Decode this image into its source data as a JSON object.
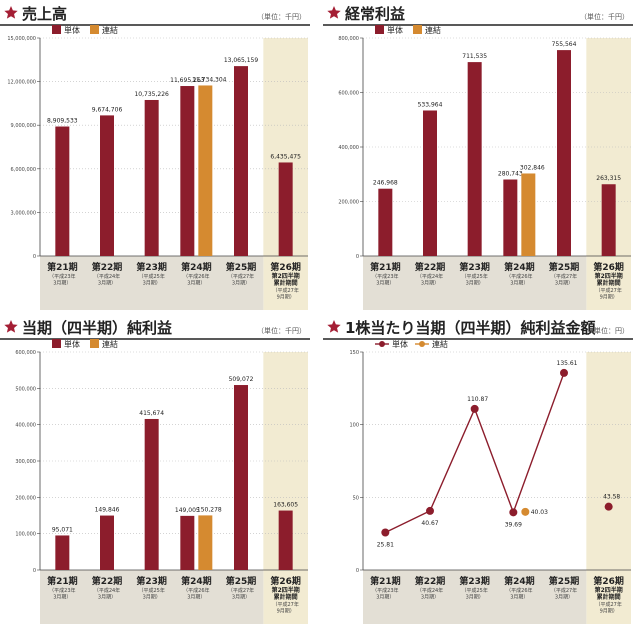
{
  "page": {
    "colors": {
      "tandoku": "#8c1d2c",
      "renketsu": "#d58a30",
      "highlight": "#f2ebd2",
      "labelbg": "#e3dfd5",
      "grid": "#bbbbbb",
      "star": "#a41e34"
    }
  },
  "chart_data": [
    {
      "type": "bar",
      "title": "売上高",
      "unit": "（単位：千円）",
      "legend": [
        "単体",
        "連結"
      ],
      "ylim": [
        0,
        15000000
      ],
      "ytick_labels": [
        "0",
        "3,000,000",
        "6,000,000",
        "9,000,000",
        "12,000,000",
        "15,000,000"
      ],
      "categories": [
        {
          "period": "第21期",
          "sub": [
            "（平成23年",
            "3月期）"
          ]
        },
        {
          "period": "第22期",
          "sub": [
            "（平成24年",
            "3月期）"
          ]
        },
        {
          "period": "第23期",
          "sub": [
            "（平成25年",
            "3月期）"
          ]
        },
        {
          "period": "第24期",
          "sub": [
            "（平成26年",
            "3月期）"
          ]
        },
        {
          "period": "第25期",
          "sub": [
            "（平成27年",
            "3月期）"
          ]
        },
        {
          "period": "第26期",
          "bold": [
            "第2四半期",
            "累計期間"
          ],
          "sub": [
            "（平成27年",
            "9月期）"
          ]
        }
      ],
      "series": [
        {
          "name": "単体",
          "values": [
            8909533,
            9674706,
            10735226,
            11695263,
            13065159,
            6435475
          ],
          "labels": [
            "8,909,533",
            "9,674,706",
            "10,735,226",
            "11,695,263",
            "13,065,159",
            "6,435,475"
          ]
        },
        {
          "name": "連結",
          "values": [
            null,
            null,
            null,
            11734304,
            null,
            null
          ],
          "labels": [
            null,
            null,
            null,
            "11,734,304",
            null,
            null
          ]
        }
      ]
    },
    {
      "type": "bar",
      "title": "経常利益",
      "unit": "（単位：千円）",
      "legend": [
        "単体",
        "連結"
      ],
      "ylim": [
        0,
        800000
      ],
      "ytick_labels": [
        "0",
        "200,000",
        "400,000",
        "600,000",
        "800,000"
      ],
      "categories": [
        {
          "period": "第21期",
          "sub": [
            "（平成23年",
            "3月期）"
          ]
        },
        {
          "period": "第22期",
          "sub": [
            "（平成24年",
            "3月期）"
          ]
        },
        {
          "period": "第23期",
          "sub": [
            "（平成25年",
            "3月期）"
          ]
        },
        {
          "period": "第24期",
          "sub": [
            "（平成26年",
            "3月期）"
          ]
        },
        {
          "period": "第25期",
          "sub": [
            "（平成27年",
            "3月期）"
          ]
        },
        {
          "period": "第26期",
          "bold": [
            "第2四半期",
            "累計期間"
          ],
          "sub": [
            "（平成27年",
            "9月期）"
          ]
        }
      ],
      "series": [
        {
          "name": "単体",
          "values": [
            246968,
            533964,
            711535,
            280743,
            755564,
            263315
          ],
          "labels": [
            "246,968",
            "533,964",
            "711,535",
            "280,743",
            "755,564",
            "263,315"
          ]
        },
        {
          "name": "連結",
          "values": [
            null,
            null,
            null,
            302846,
            null,
            null
          ],
          "labels": [
            null,
            null,
            null,
            "302,846",
            null,
            null
          ]
        }
      ]
    },
    {
      "type": "bar",
      "title": "当期（四半期）純利益",
      "unit": "（単位：千円）",
      "legend": [
        "単体",
        "連結"
      ],
      "ylim": [
        0,
        600000
      ],
      "ytick_labels": [
        "0",
        "100,000",
        "200,000",
        "300,000",
        "400,000",
        "500,000",
        "600,000"
      ],
      "categories": [
        {
          "period": "第21期",
          "sub": [
            "（平成23年",
            "3月期）"
          ]
        },
        {
          "period": "第22期",
          "sub": [
            "（平成24年",
            "3月期）"
          ]
        },
        {
          "period": "第23期",
          "sub": [
            "（平成25年",
            "3月期）"
          ]
        },
        {
          "period": "第24期",
          "sub": [
            "（平成26年",
            "3月期）"
          ]
        },
        {
          "period": "第25期",
          "sub": [
            "（平成27年",
            "3月期）"
          ]
        },
        {
          "period": "第26期",
          "bold": [
            "第2四半期",
            "累計期間"
          ],
          "sub": [
            "（平成27年",
            "9月期）"
          ]
        }
      ],
      "series": [
        {
          "name": "単体",
          "values": [
            95071,
            149846,
            415674,
            149005,
            509072,
            163605
          ],
          "labels": [
            "95,071",
            "149,846",
            "415,674",
            "149,005",
            "509,072",
            "163,605"
          ]
        },
        {
          "name": "連結",
          "values": [
            null,
            null,
            null,
            150278,
            null,
            null
          ],
          "labels": [
            null,
            null,
            null,
            "150,278",
            null,
            null
          ]
        }
      ]
    },
    {
      "type": "line",
      "title": "1株当たり当期（四半期）純利益金額",
      "unit": "（単位：円）",
      "legend": [
        "単体",
        "連結"
      ],
      "ylim": [
        0,
        150
      ],
      "ytick_labels": [
        "0",
        "50",
        "100",
        "150"
      ],
      "categories": [
        {
          "period": "第21期",
          "sub": [
            "（平成23年",
            "3月期）"
          ]
        },
        {
          "period": "第22期",
          "sub": [
            "（平成24年",
            "3月期）"
          ]
        },
        {
          "period": "第23期",
          "sub": [
            "（平成25年",
            "3月期）"
          ]
        },
        {
          "period": "第24期",
          "sub": [
            "（平成26年",
            "3月期）"
          ]
        },
        {
          "period": "第25期",
          "sub": [
            "（平成27年",
            "3月期）"
          ]
        },
        {
          "period": "第26期",
          "bold": [
            "第2四半期",
            "累計期間"
          ],
          "sub": [
            "（平成27年",
            "9月期）"
          ]
        }
      ],
      "series": [
        {
          "name": "単体",
          "values": [
            25.81,
            40.67,
            110.87,
            39.69,
            135.61,
            43.58
          ],
          "labels": [
            "25.81",
            "40.67",
            "110.87",
            "39.69",
            "135.61",
            "43.58"
          ]
        },
        {
          "name": "連結",
          "values": [
            null,
            null,
            null,
            40.03,
            null,
            null
          ],
          "labels": [
            null,
            null,
            null,
            "40.03",
            null,
            null
          ]
        }
      ]
    }
  ]
}
